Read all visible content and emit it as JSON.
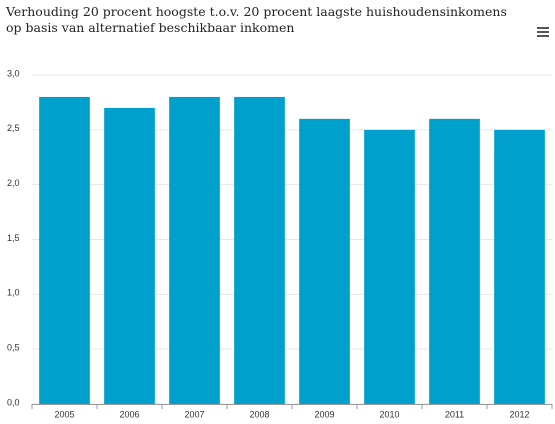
{
  "chart_data": {
    "type": "bar",
    "title": "Verhouding 20 procent hoogste t.o.v. 20 procent laagste huishoudensinkomens op basis van alternatief beschikbaar inkomen",
    "categories": [
      "2005",
      "2006",
      "2007",
      "2008",
      "2009",
      "2010",
      "2011",
      "2012"
    ],
    "values": [
      2.8,
      2.7,
      2.8,
      2.8,
      2.6,
      2.5,
      2.6,
      2.5
    ],
    "color": "#00a0cc",
    "ylim": [
      0,
      3
    ],
    "yticks": [
      {
        "value": 0,
        "label": "0,0"
      },
      {
        "value": 0.5,
        "label": "0,5"
      },
      {
        "value": 1,
        "label": "1,0"
      },
      {
        "value": 1.5,
        "label": "1,5"
      },
      {
        "value": 2,
        "label": "2,0"
      },
      {
        "value": 2.5,
        "label": "2,5"
      },
      {
        "value": 3,
        "label": "3,0"
      }
    ],
    "grid": true
  }
}
